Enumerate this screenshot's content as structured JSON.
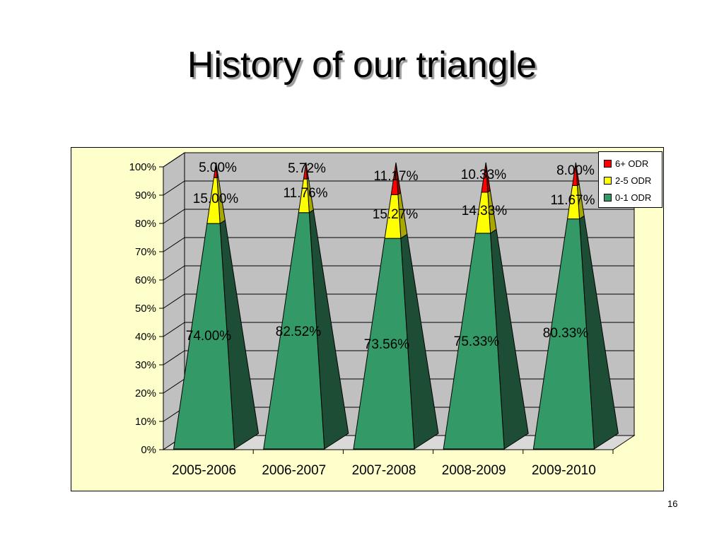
{
  "slide": {
    "title": "History of our triangle",
    "page_number": "16"
  },
  "colors": {
    "plot_area": "#c0c0c0",
    "floor": "#d9d9d9",
    "chart_background": "#ffffcc",
    "gridline": "#000000"
  },
  "chart_data": {
    "type": "bar",
    "subtype": "3d-100%-stacked-pyramid",
    "categories": [
      "2005-2006",
      "2006-2007",
      "2007-2008",
      "2008-2009",
      "2009-2010"
    ],
    "series": [
      {
        "name": "0-1 ODR",
        "values": [
          74.0,
          82.52,
          73.56,
          75.33,
          80.33
        ],
        "labels": [
          "74.00%",
          "82.52%",
          "73.56%",
          "75.33%",
          "80.33%"
        ],
        "color": "#339966",
        "side_color": "#1e4d35"
      },
      {
        "name": "2-5 ODR",
        "values": [
          15.0,
          11.76,
          15.27,
          14.33,
          11.67
        ],
        "labels": [
          "15.00%",
          "11.76%",
          "15.27%",
          "14.33%",
          "11.67%"
        ],
        "color": "#ffff00",
        "side_color": "#a8a800"
      },
      {
        "name": "6+ ODR",
        "values": [
          5.0,
          5.72,
          11.17,
          10.33,
          8.0
        ],
        "labels": [
          "5.00%",
          "5.72%",
          "11.17%",
          "10.33%",
          "8.00%"
        ],
        "color": "#ff0000",
        "side_color": "#990000"
      }
    ],
    "y_ticks": [
      "0%",
      "10%",
      "20%",
      "30%",
      "40%",
      "50%",
      "60%",
      "70%",
      "80%",
      "90%",
      "100%"
    ],
    "ylim": [
      0,
      100
    ],
    "grid": true,
    "legend_position": "top-right"
  }
}
